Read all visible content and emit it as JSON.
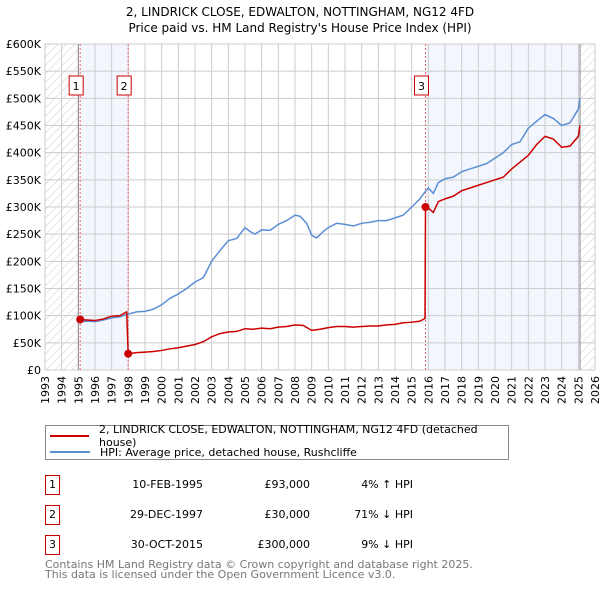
{
  "chart_data": {
    "type": "line",
    "title": "2, LINDRICK CLOSE, EDWALTON, NOTTINGHAM, NG12 4FD",
    "subtitle": "Price paid vs. HM Land Registry's House Price Index (HPI)",
    "xlim": [
      1993,
      2026
    ],
    "ylim": [
      0,
      600000
    ],
    "y_ticks": [
      0,
      50000,
      100000,
      150000,
      200000,
      250000,
      300000,
      350000,
      400000,
      450000,
      500000,
      550000,
      600000
    ],
    "y_tick_labels": [
      "£0",
      "£50K",
      "£100K",
      "£150K",
      "£200K",
      "£250K",
      "£300K",
      "£350K",
      "£400K",
      "£450K",
      "£500K",
      "£550K",
      "£600K"
    ],
    "x_ticks": [
      1993,
      1994,
      1995,
      1996,
      1997,
      1998,
      1999,
      2000,
      2001,
      2002,
      2003,
      2004,
      2005,
      2006,
      2007,
      2008,
      2009,
      2010,
      2011,
      2012,
      2013,
      2014,
      2015,
      2016,
      2017,
      2018,
      2019,
      2020,
      2021,
      2022,
      2023,
      2024,
      2025,
      2026
    ],
    "x_tick_labels": [
      "1993",
      "1994",
      "1995",
      "1996",
      "1997",
      "1998",
      "1999",
      "2000",
      "2001",
      "2002",
      "2003",
      "2004",
      "2005",
      "2006",
      "2007",
      "2008",
      "2009",
      "2010",
      "2011",
      "2012",
      "2013",
      "2014",
      "2015",
      "2016",
      "2017",
      "2018",
      "2019",
      "2020",
      "2021",
      "2022",
      "2023",
      "2024",
      "2025",
      "2026"
    ],
    "grid": true,
    "hatched_before": 1995.0,
    "hatched_after": 2025.1,
    "series": [
      {
        "name": "2, LINDRICK CLOSE, EDWALTON, NOTTINGHAM, NG12 4FD (detached house)",
        "color": "#cc0000",
        "x": [
          1995.11,
          1995.5,
          1996,
          1996.5,
          1997,
          1997.5,
          1997.9,
          1997.99,
          1998.5,
          1999,
          1999.5,
          2000,
          2000.5,
          2001,
          2001.5,
          2002,
          2002.5,
          2003,
          2003.5,
          2004,
          2004.5,
          2005,
          2005.5,
          2006,
          2006.5,
          2007,
          2007.5,
          2008,
          2008.5,
          2009,
          2009.5,
          2010,
          2010.5,
          2011,
          2011.5,
          2012,
          2012.5,
          2013,
          2013.5,
          2014,
          2014.5,
          2015,
          2015.5,
          2015.8,
          2015.83,
          2016,
          2016.3,
          2016.6,
          2017,
          2017.5,
          2018,
          2018.5,
          2019,
          2019.5,
          2020,
          2020.5,
          2021,
          2021.4,
          2021.6,
          2022,
          2022.5,
          2023,
          2023.5,
          2024,
          2024.5,
          2025,
          2025.1
        ],
        "y": [
          93000,
          92000,
          91000,
          94000,
          99000,
          100000,
          107000,
          30000,
          32000,
          33000,
          34000,
          36000,
          39000,
          41000,
          44000,
          47000,
          52000,
          61000,
          67000,
          70000,
          71000,
          76000,
          75000,
          77000,
          76000,
          79000,
          80000,
          83000,
          82000,
          73000,
          75000,
          78000,
          80000,
          80000,
          79000,
          80000,
          81000,
          81000,
          83000,
          84000,
          87000,
          88000,
          90000,
          95000,
          300000,
          298000,
          290000,
          310000,
          315000,
          320000,
          330000,
          335000,
          340000,
          345000,
          350000,
          355000,
          370000,
          380000,
          385000,
          395000,
          415000,
          430000,
          425000,
          410000,
          412000,
          430000,
          450000
        ]
      },
      {
        "name": "HPI: Average price, detached house, Rushcliffe",
        "color": "#5b8fd4",
        "x": [
          1995.0,
          1995.5,
          1996,
          1996.5,
          1997,
          1997.5,
          1998,
          1998.5,
          1999,
          1999.5,
          2000,
          2000.5,
          2001,
          2001.5,
          2002,
          2002.5,
          2003,
          2003.5,
          2004,
          2004.5,
          2005,
          2005.3,
          2005.6,
          2006,
          2006.5,
          2007,
          2007.5,
          2008,
          2008.3,
          2008.7,
          2009,
          2009.3,
          2009.7,
          2010,
          2010.5,
          2011,
          2011.5,
          2012,
          2012.5,
          2013,
          2013.5,
          2014,
          2014.5,
          2015,
          2015.5,
          2015.8,
          2016,
          2016.3,
          2016.6,
          2017,
          2017.5,
          2018,
          2018.5,
          2019,
          2019.5,
          2020,
          2020.5,
          2021,
          2021.5,
          2022,
          2022.5,
          2023,
          2023.5,
          2024,
          2024.5,
          2025,
          2025.1
        ],
        "y": [
          88000,
          90000,
          89000,
          92000,
          96000,
          98000,
          103000,
          107000,
          108000,
          112000,
          120000,
          132000,
          140000,
          150000,
          162000,
          170000,
          200000,
          220000,
          238000,
          242000,
          262000,
          255000,
          250000,
          258000,
          257000,
          268000,
          275000,
          285000,
          283000,
          270000,
          248000,
          243000,
          255000,
          262000,
          270000,
          268000,
          265000,
          270000,
          272000,
          275000,
          275000,
          280000,
          285000,
          300000,
          315000,
          328000,
          335000,
          325000,
          345000,
          352000,
          355000,
          365000,
          370000,
          375000,
          380000,
          390000,
          400000,
          415000,
          420000,
          445000,
          458000,
          470000,
          463000,
          450000,
          455000,
          480000,
          500000
        ]
      }
    ],
    "annotations": [
      {
        "label": "1",
        "x": 1995.11,
        "y": 93000
      },
      {
        "label": "2",
        "x": 1997.99,
        "y": 30000
      },
      {
        "label": "3",
        "x": 2015.83,
        "y": 300000
      }
    ]
  },
  "legend": {
    "items": [
      "2, LINDRICK CLOSE, EDWALTON, NOTTINGHAM, NG12 4FD (detached house)",
      "HPI: Average price, detached house, Rushcliffe"
    ]
  },
  "transactions": [
    {
      "num": "1",
      "date": "10-FEB-1995",
      "price": "£93,000",
      "hpi": "4% ↑ HPI"
    },
    {
      "num": "2",
      "date": "29-DEC-1997",
      "price": "£30,000",
      "hpi": "71% ↓ HPI"
    },
    {
      "num": "3",
      "date": "30-OCT-2015",
      "price": "£300,000",
      "hpi": "9% ↓ HPI"
    }
  ],
  "footer": [
    "Contains HM Land Registry data © Crown copyright and database right 2025.",
    "This data is licensed under the Open Government Licence v3.0."
  ]
}
